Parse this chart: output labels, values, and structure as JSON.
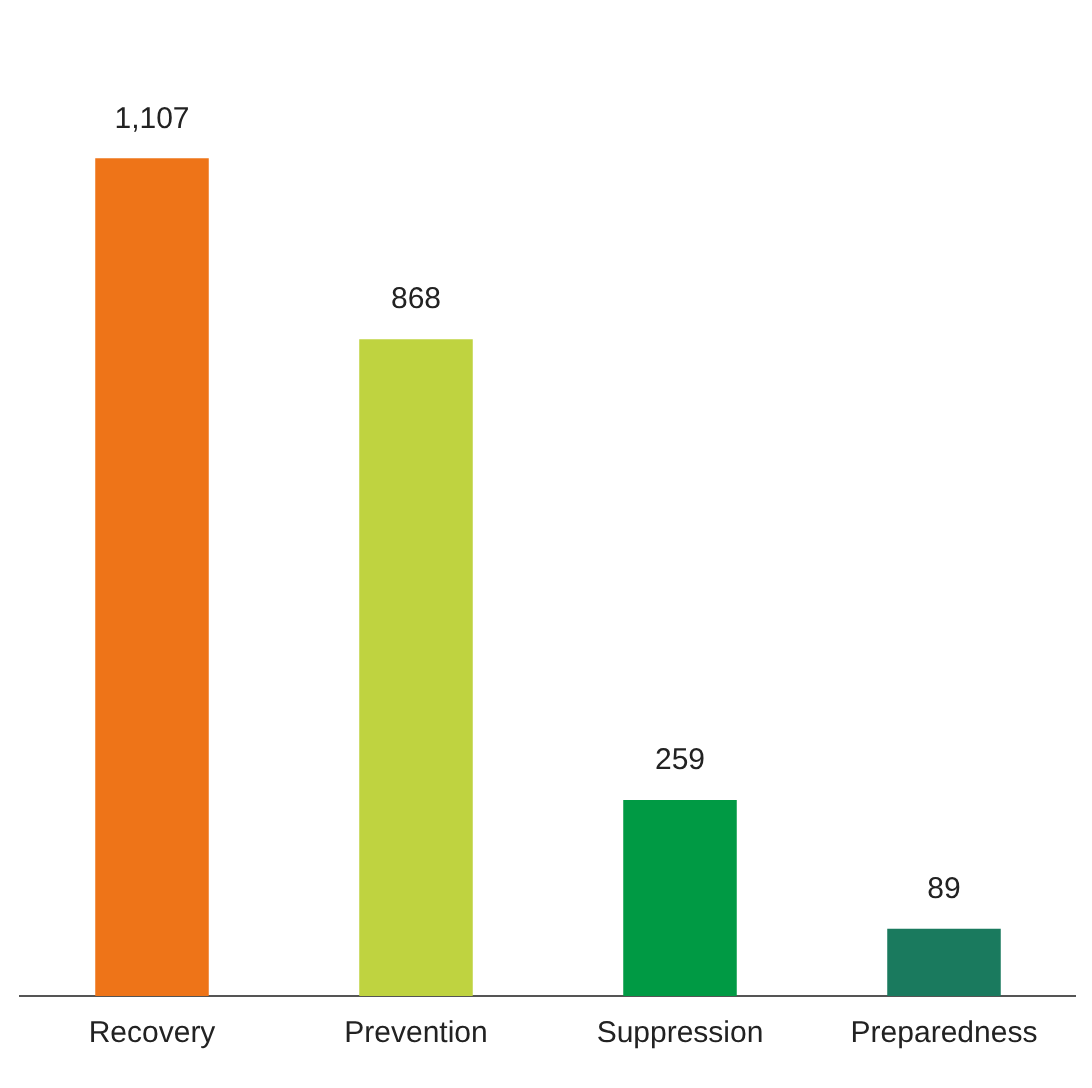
{
  "chart_data": {
    "type": "bar",
    "categories": [
      "Recovery",
      "Prevention",
      "Suppression",
      "Preparedness"
    ],
    "values": [
      1107,
      868,
      259,
      89
    ],
    "colors": [
      "#ee7418",
      "#bfd340",
      "#009a44",
      "#1a7a5e"
    ],
    "value_labels": [
      "1,107",
      "868",
      "259",
      "89"
    ],
    "grid": false,
    "legend": false
  }
}
